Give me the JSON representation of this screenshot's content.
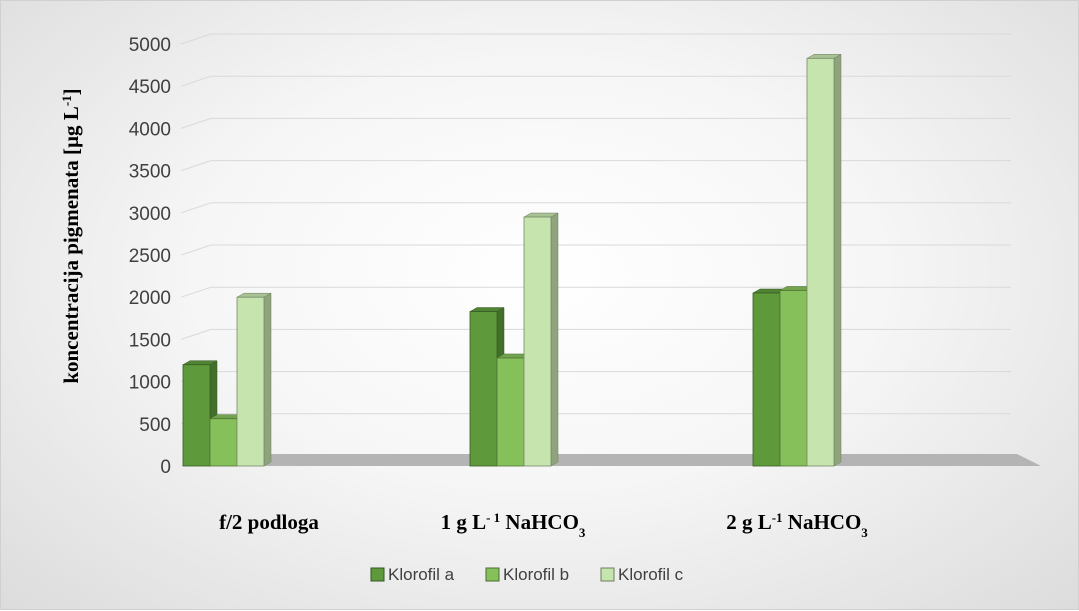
{
  "chart_data": {
    "type": "bar",
    "categories": [
      {
        "main": "f/2 podloga",
        "parts": [
          {
            "t": "f/2 podloga",
            "s": ""
          }
        ]
      },
      {
        "main": "1 g L-1 NaHCO3",
        "parts": [
          {
            "t": "1 g L",
            "s": ""
          },
          {
            "t": "- 1",
            "s": "sup"
          },
          {
            "t": " NaHCO",
            "s": ""
          },
          {
            "t": "3",
            "s": "sub"
          }
        ]
      },
      {
        "main": "2 g L-1 NaHCO3",
        "parts": [
          {
            "t": "2 g L",
            "s": ""
          },
          {
            "t": "-1",
            "s": "sup"
          },
          {
            "t": " NaHCO",
            "s": ""
          },
          {
            "t": "3",
            "s": "sub"
          }
        ]
      }
    ],
    "series": [
      {
        "name": "Klorofil a",
        "color": "#5e9a3c",
        "values": [
          1200,
          1830,
          2050
        ]
      },
      {
        "name": "Klorofil b",
        "color": "#86c05a",
        "values": [
          560,
          1280,
          2080
        ]
      },
      {
        "name": "Klorofil c",
        "color": "#c6e4ae",
        "values": [
          2000,
          2950,
          4830
        ]
      }
    ],
    "ylabel_parts": [
      {
        "t": "koncentracija pigmenata [µg L",
        "s": ""
      },
      {
        "t": "-1",
        "s": "sup"
      },
      {
        "t": "]",
        "s": ""
      }
    ],
    "ylim": [
      0,
      5000
    ],
    "yticks": [
      "0",
      "500",
      "1000",
      "1500",
      "2000",
      "2500",
      "3000",
      "3500",
      "4000",
      "4500",
      "5000"
    ],
    "grid": true,
    "legend_position": "bottom"
  }
}
